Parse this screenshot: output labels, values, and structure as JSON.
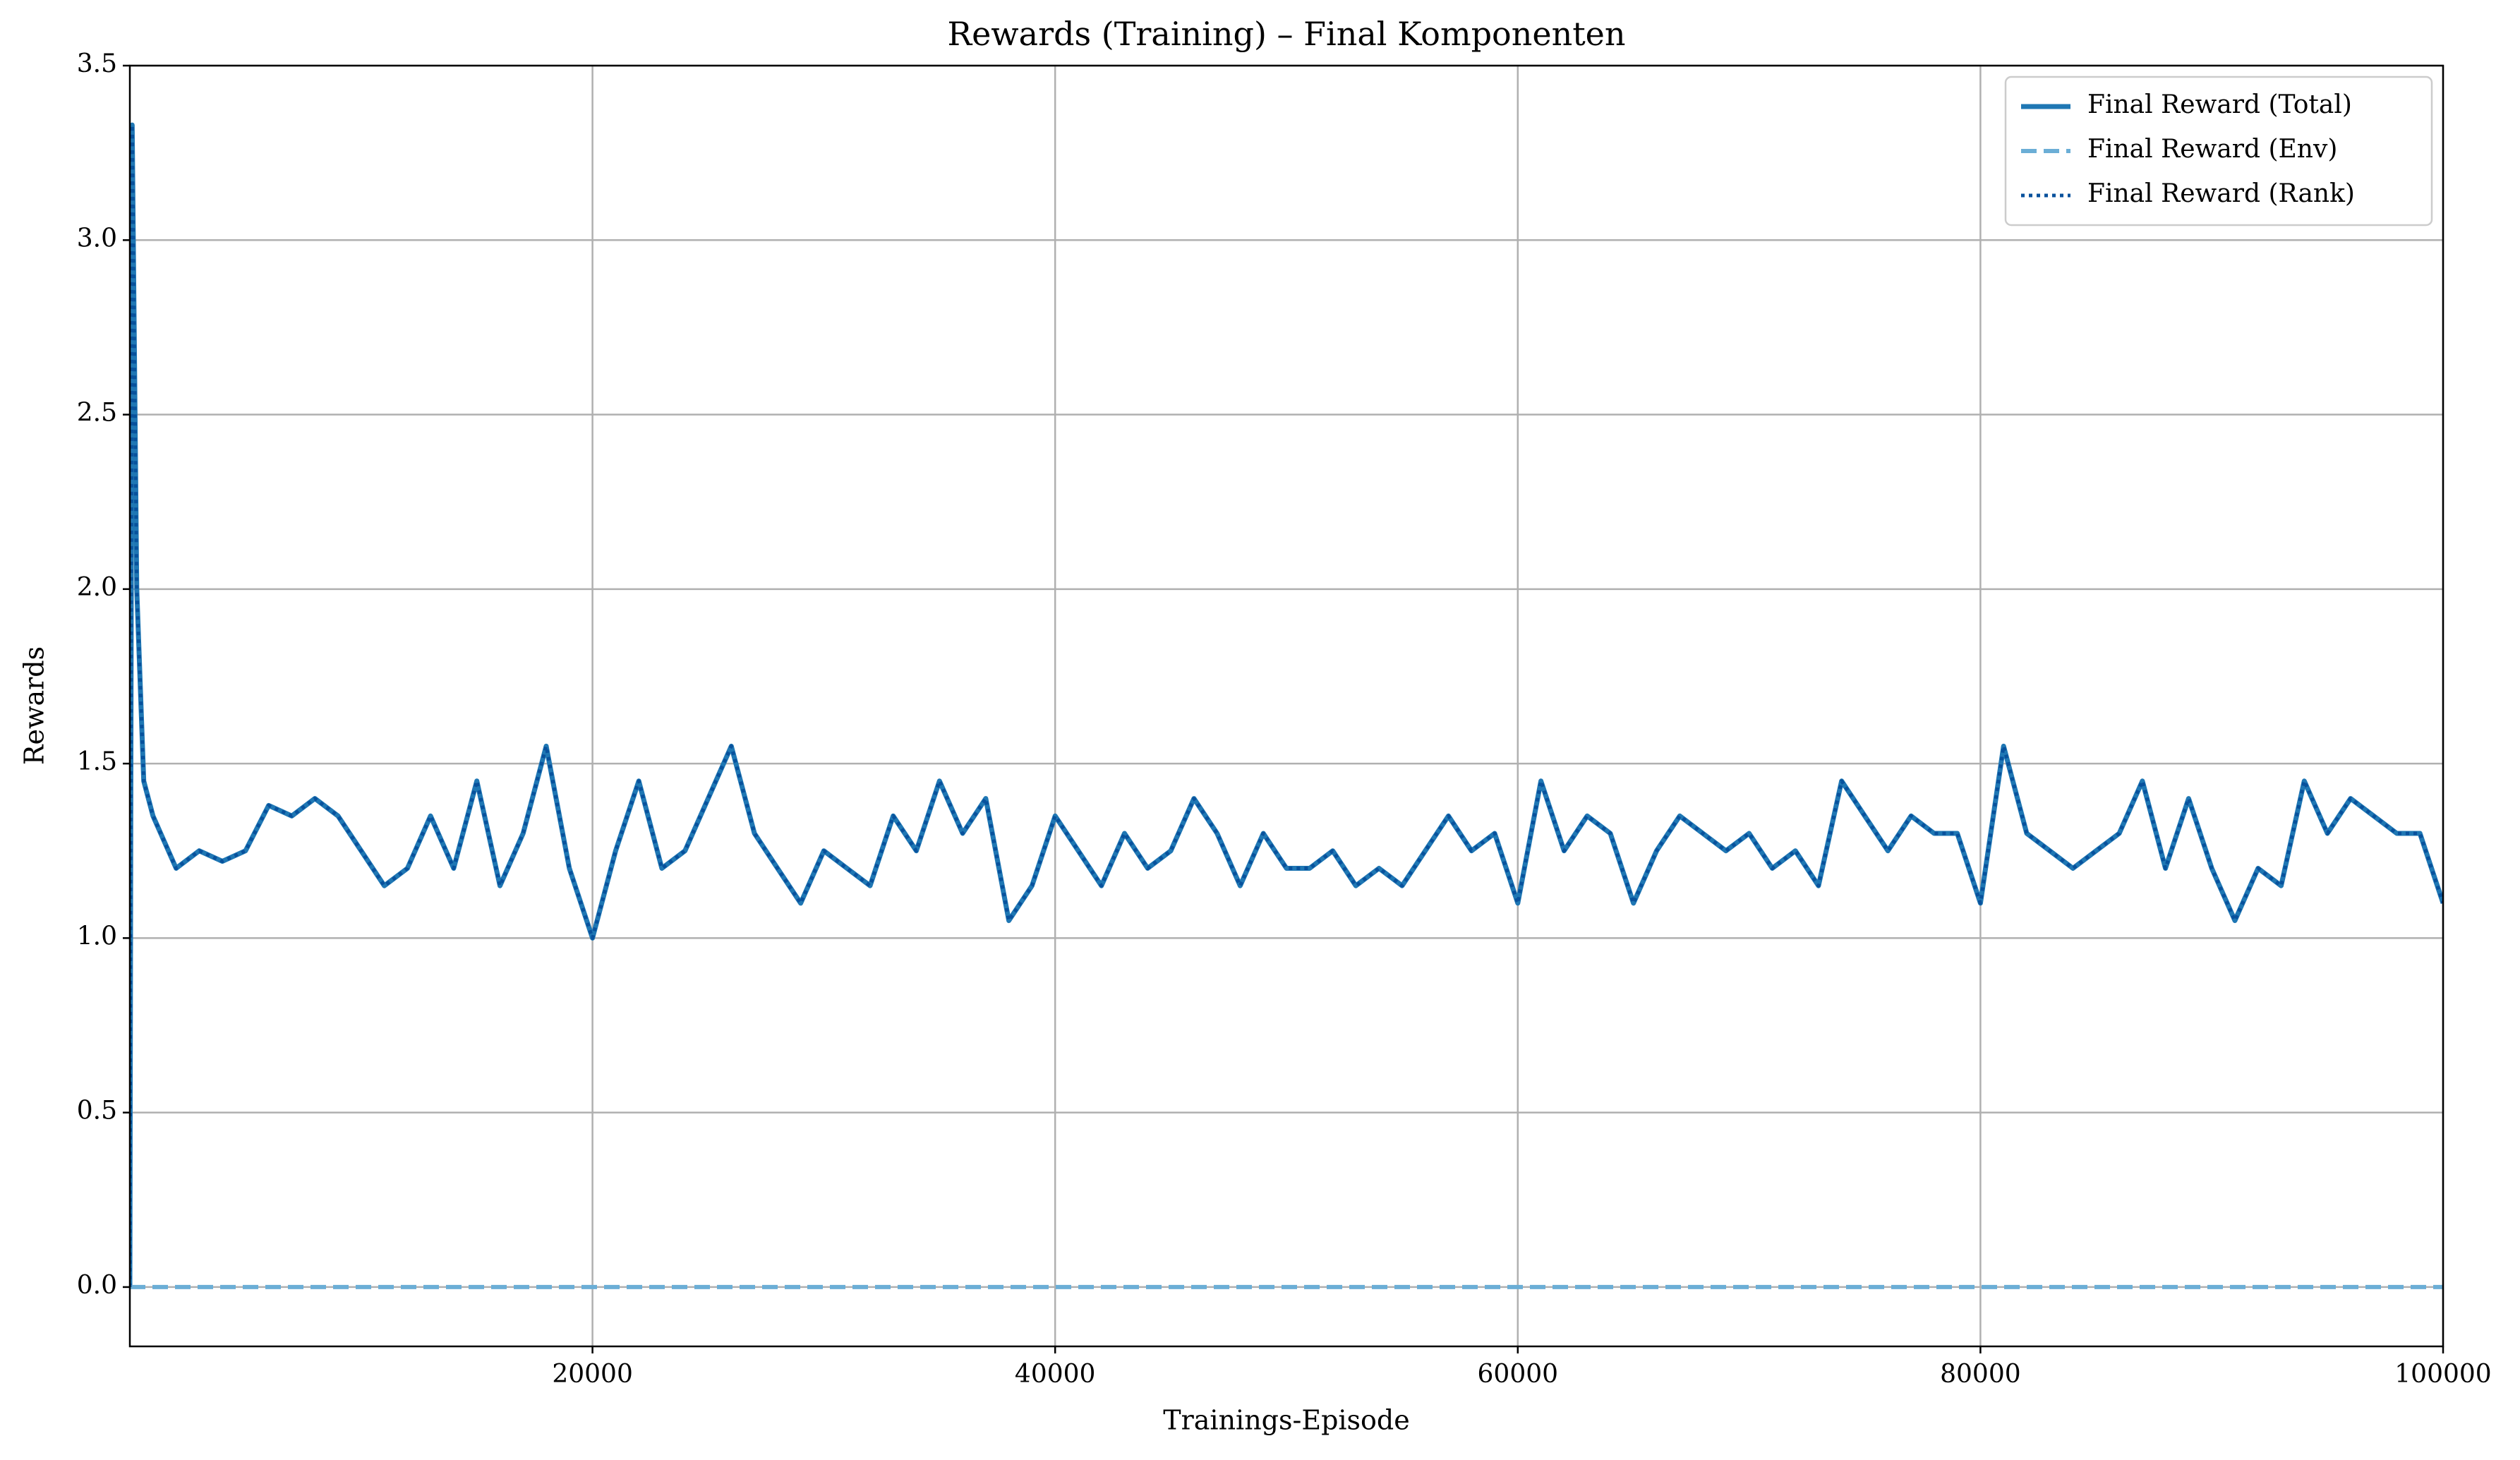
{
  "chart_data": {
    "type": "line",
    "title": "Rewards (Training) – Final Komponenten",
    "xlabel": "Trainings-Episode",
    "ylabel": "Rewards",
    "x": [
      0,
      100,
      300,
      600,
      1000,
      2000,
      3000,
      4000,
      5000,
      6000,
      7000,
      8000,
      9000,
      10000,
      11000,
      12000,
      13000,
      14000,
      15000,
      16000,
      17000,
      18000,
      19000,
      20000,
      21000,
      22000,
      23000,
      24000,
      25000,
      26000,
      27000,
      28000,
      29000,
      30000,
      31000,
      32000,
      33000,
      34000,
      35000,
      36000,
      37000,
      38000,
      39000,
      40000,
      41000,
      42000,
      43000,
      44000,
      45000,
      46000,
      47000,
      48000,
      49000,
      50000,
      51000,
      52000,
      53000,
      54000,
      55000,
      56000,
      57000,
      58000,
      59000,
      60000,
      61000,
      62000,
      63000,
      64000,
      65000,
      66000,
      67000,
      68000,
      69000,
      70000,
      71000,
      72000,
      73000,
      74000,
      75000,
      76000,
      77000,
      78000,
      79000,
      80000,
      81000,
      82000,
      83000,
      84000,
      85000,
      86000,
      87000,
      88000,
      89000,
      90000,
      91000,
      92000,
      93000,
      94000,
      95000,
      96000,
      97000,
      98000,
      99000,
      100000
    ],
    "series": [
      {
        "name": "Final Reward (Total)",
        "color": "#1f77b4",
        "dash": "solid",
        "values": [
          0,
          3.33,
          2.0,
          1.45,
          1.35,
          1.2,
          1.25,
          1.22,
          1.25,
          1.38,
          1.35,
          1.4,
          1.35,
          1.25,
          1.15,
          1.2,
          1.35,
          1.2,
          1.45,
          1.15,
          1.3,
          1.55,
          1.2,
          1.0,
          1.25,
          1.45,
          1.2,
          1.25,
          1.4,
          1.55,
          1.3,
          1.2,
          1.1,
          1.25,
          1.2,
          1.15,
          1.35,
          1.25,
          1.45,
          1.3,
          1.4,
          1.05,
          1.15,
          1.35,
          1.25,
          1.15,
          1.3,
          1.2,
          1.25,
          1.4,
          1.3,
          1.15,
          1.3,
          1.2,
          1.2,
          1.25,
          1.15,
          1.2,
          1.15,
          1.25,
          1.35,
          1.25,
          1.3,
          1.1,
          1.45,
          1.25,
          1.35,
          1.3,
          1.1,
          1.25,
          1.35,
          1.3,
          1.25,
          1.3,
          1.2,
          1.25,
          1.15,
          1.45,
          1.35,
          1.25,
          1.35,
          1.3,
          1.3,
          1.1,
          1.55,
          1.3,
          1.25,
          1.2,
          1.25,
          1.3,
          1.45,
          1.2,
          1.4,
          1.2,
          1.05,
          1.2,
          1.15,
          1.45,
          1.3,
          1.4,
          1.35,
          1.3,
          1.3,
          1.1
        ]
      },
      {
        "name": "Final Reward (Env)",
        "color": "#6baed6",
        "dash": "dashed",
        "values": [
          0,
          0,
          0,
          0,
          0,
          0,
          0,
          0,
          0,
          0,
          0,
          0,
          0,
          0,
          0,
          0,
          0,
          0,
          0,
          0,
          0,
          0,
          0,
          0,
          0,
          0,
          0,
          0,
          0,
          0,
          0,
          0,
          0,
          0,
          0,
          0,
          0,
          0,
          0,
          0,
          0,
          0,
          0,
          0,
          0,
          0,
          0,
          0,
          0,
          0,
          0,
          0,
          0,
          0,
          0,
          0,
          0,
          0,
          0,
          0,
          0,
          0,
          0,
          0,
          0,
          0,
          0,
          0,
          0,
          0,
          0,
          0,
          0,
          0,
          0,
          0,
          0,
          0,
          0,
          0,
          0,
          0,
          0,
          0,
          0,
          0,
          0,
          0,
          0,
          0,
          0,
          0,
          0,
          0,
          0,
          0,
          0,
          0,
          0,
          0,
          0,
          0,
          0,
          0
        ]
      },
      {
        "name": "Final Reward (Rank)",
        "color": "#08519c",
        "dash": "dotted",
        "values": [
          0,
          3.33,
          2.0,
          1.45,
          1.35,
          1.2,
          1.25,
          1.22,
          1.25,
          1.38,
          1.35,
          1.4,
          1.35,
          1.25,
          1.15,
          1.2,
          1.35,
          1.2,
          1.45,
          1.15,
          1.3,
          1.55,
          1.2,
          1.0,
          1.25,
          1.45,
          1.2,
          1.25,
          1.4,
          1.55,
          1.3,
          1.2,
          1.1,
          1.25,
          1.2,
          1.15,
          1.35,
          1.25,
          1.45,
          1.3,
          1.4,
          1.05,
          1.15,
          1.35,
          1.25,
          1.15,
          1.3,
          1.2,
          1.25,
          1.4,
          1.3,
          1.15,
          1.3,
          1.2,
          1.2,
          1.25,
          1.15,
          1.2,
          1.15,
          1.25,
          1.35,
          1.25,
          1.3,
          1.1,
          1.45,
          1.25,
          1.35,
          1.3,
          1.1,
          1.25,
          1.35,
          1.3,
          1.25,
          1.3,
          1.2,
          1.25,
          1.15,
          1.45,
          1.35,
          1.25,
          1.35,
          1.3,
          1.3,
          1.1,
          1.55,
          1.3,
          1.25,
          1.2,
          1.25,
          1.3,
          1.45,
          1.2,
          1.4,
          1.2,
          1.05,
          1.2,
          1.15,
          1.45,
          1.3,
          1.4,
          1.35,
          1.3,
          1.3,
          1.1
        ]
      }
    ],
    "xlim": [
      0,
      100000
    ],
    "xticks": [
      20000,
      40000,
      60000,
      80000,
      100000
    ],
    "ylim": [
      -0.17,
      3.5
    ],
    "yticks": [
      {
        "value": 0,
        "label": "0.0"
      },
      0.5,
      {
        "value": 1,
        "label": "1.0"
      },
      1.5,
      {
        "value": 2,
        "label": "2.0"
      },
      2.5,
      {
        "value": 3,
        "label": "3.0"
      },
      3.5
    ],
    "grid": true,
    "legend": "upper right"
  }
}
